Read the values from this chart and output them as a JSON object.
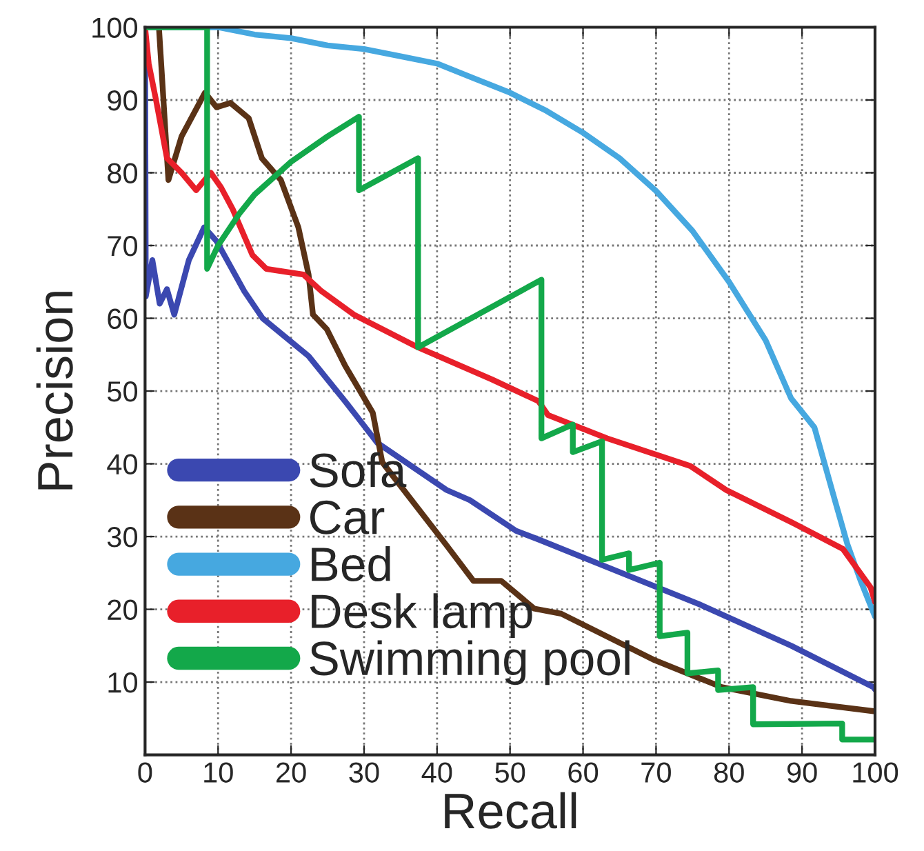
{
  "chart_data": {
    "type": "line",
    "xlabel": "Recall",
    "ylabel": "Precision",
    "xlim": [
      0,
      100
    ],
    "ylim": [
      0,
      100
    ],
    "xticks": [
      0,
      10,
      20,
      30,
      40,
      50,
      60,
      70,
      80,
      90,
      100
    ],
    "yticks": [
      10,
      20,
      30,
      40,
      50,
      60,
      70,
      80,
      90,
      100
    ],
    "grid": true,
    "legend": "bottom left",
    "marker": "none",
    "line_style": "solid",
    "series": [
      {
        "name": "Sofa",
        "color": "#3b48b0",
        "x": [
          0,
          0.1,
          1,
          2,
          3,
          4,
          6,
          8.1,
          9.8,
          13.6,
          16.1,
          22.4,
          27.4,
          31.8,
          41.3,
          44.5,
          50.8,
          53.9,
          63.3,
          75.9,
          88.5,
          99.8,
          100
        ],
        "values": [
          100,
          63,
          68,
          62,
          64,
          60.5,
          68,
          72.5,
          70.6,
          63.7,
          60,
          54.8,
          48.6,
          42.9,
          36.4,
          35,
          30.8,
          29.6,
          25.8,
          20.7,
          15,
          9.3,
          9
        ]
      },
      {
        "name": "Car",
        "color": "#5a3216",
        "x": [
          1.9,
          3.2,
          5,
          8.2,
          9.8,
          11.7,
          14.2,
          16,
          18.6,
          21,
          22.4,
          23,
          24.9,
          27.4,
          31.2,
          32.5,
          41.3,
          45,
          48.8,
          53.3,
          57,
          69.6,
          79,
          88.5,
          99.8,
          100
        ],
        "values": [
          100,
          79,
          85,
          91,
          89,
          89.6,
          87.5,
          82,
          79,
          72.5,
          66,
          60.5,
          58.5,
          53.5,
          47,
          40.2,
          28.8,
          23.9,
          23.9,
          20.1,
          19.4,
          13.1,
          9.3,
          7.4,
          6,
          6
        ]
      },
      {
        "name": "Bed",
        "color": "#46a8e0",
        "x": [
          0,
          10,
          15,
          20,
          25,
          30,
          35,
          40,
          45,
          50,
          55,
          60,
          65,
          70,
          75,
          80,
          85,
          88.5,
          91.7,
          94.5,
          96.2,
          98,
          100
        ],
        "values": [
          100,
          100,
          99,
          98.5,
          97.5,
          97,
          96,
          95,
          93,
          91,
          88.5,
          85.5,
          82,
          77.5,
          72,
          65,
          57,
          49,
          45,
          35,
          29,
          24,
          19
        ]
      },
      {
        "name": "Desk lamp",
        "color": "#e8202a",
        "x": [
          0,
          0.5,
          1.5,
          3,
          5,
          7,
          9,
          10.4,
          12,
          14.7,
          16.6,
          21.7,
          24.2,
          28.6,
          37.4,
          47.5,
          53.9,
          55.2,
          63.3,
          74.7,
          79.6,
          88.5,
          95.6,
          99.4,
          100
        ],
        "values": [
          100,
          95,
          90,
          82,
          80,
          77.6,
          80,
          78,
          75,
          68.7,
          66.8,
          66,
          63.7,
          60.5,
          56,
          51.6,
          48.6,
          46.7,
          43.5,
          39.7,
          36.4,
          32,
          28.3,
          23,
          21
        ]
      },
      {
        "name": "Swimming pool",
        "color": "#13a84a",
        "x": [
          0,
          8.5,
          8.5,
          10,
          13,
          15,
          20,
          25,
          29.3,
          29.3,
          37.4,
          37.4,
          54.3,
          54.3,
          58.6,
          58.6,
          62.6,
          62.6,
          66.3,
          66.3,
          70.5,
          70.5,
          74.3,
          74.3,
          78.5,
          78.5,
          83.3,
          83.3,
          95.5,
          95.5,
          100
        ],
        "values": [
          100,
          100,
          66.8,
          70,
          74.5,
          77,
          81.5,
          85,
          87.7,
          77.6,
          82,
          56,
          65.3,
          43.5,
          45.4,
          41.6,
          43.1,
          26.8,
          27.7,
          25.4,
          26.4,
          16.3,
          16.8,
          11.2,
          11.6,
          8.9,
          9.3,
          4.2,
          4.3,
          2.1,
          2.1
        ]
      }
    ]
  }
}
